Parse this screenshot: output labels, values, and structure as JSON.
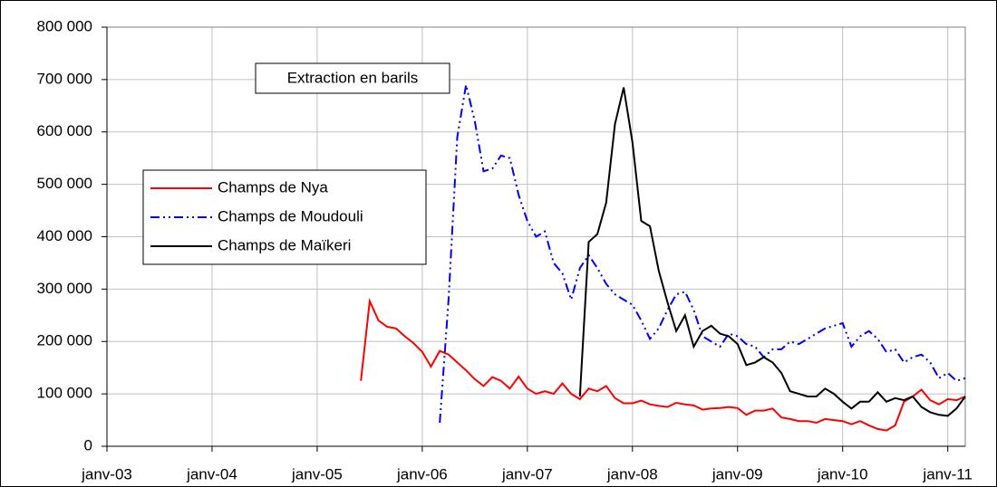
{
  "chart_data": {
    "type": "line",
    "annotation": "Extraction en barils",
    "x": [
      "2005-06",
      "2005-07",
      "2005-08",
      "2005-09",
      "2005-10",
      "2005-11",
      "2005-12",
      "2006-01",
      "2006-02",
      "2006-03",
      "2006-04",
      "2006-05",
      "2006-06",
      "2006-07",
      "2006-08",
      "2006-09",
      "2006-10",
      "2006-11",
      "2006-12",
      "2007-01",
      "2007-02",
      "2007-03",
      "2007-04",
      "2007-05",
      "2007-06",
      "2007-07",
      "2007-08",
      "2007-09",
      "2007-10",
      "2007-11",
      "2007-12",
      "2008-01",
      "2008-02",
      "2008-03",
      "2008-04",
      "2008-05",
      "2008-06",
      "2008-07",
      "2008-08",
      "2008-09",
      "2008-10",
      "2008-11",
      "2008-12",
      "2009-01",
      "2009-02",
      "2009-03",
      "2009-04",
      "2009-05",
      "2009-06",
      "2009-07",
      "2009-08",
      "2009-09",
      "2009-10",
      "2009-11",
      "2009-12",
      "2010-01",
      "2010-02",
      "2010-03",
      "2010-04",
      "2010-05",
      "2010-06",
      "2010-07",
      "2010-08",
      "2010-09",
      "2010-10",
      "2010-11",
      "2010-12",
      "2011-01",
      "2011-02",
      "2011-03"
    ],
    "series": [
      {
        "name": "Champs de Nya",
        "color": "#ff0000",
        "dash": "solid",
        "values": [
          125000,
          277000,
          240000,
          228000,
          225000,
          210000,
          197000,
          180000,
          152000,
          182000,
          175000,
          160000,
          145000,
          128000,
          115000,
          132000,
          125000,
          110000,
          133000,
          110000,
          100000,
          105000,
          100000,
          120000,
          100000,
          90000,
          110000,
          105000,
          115000,
          92000,
          82000,
          82000,
          87000,
          80000,
          77000,
          75000,
          83000,
          80000,
          78000,
          70000,
          72000,
          73000,
          75000,
          73000,
          60000,
          68000,
          68000,
          72000,
          55000,
          52000,
          48000,
          48000,
          45000,
          52000,
          50000,
          48000,
          42000,
          48000,
          40000,
          33000,
          30000,
          40000,
          85000,
          95000,
          108000,
          88000,
          80000,
          90000,
          88000,
          95000
        ]
      },
      {
        "name": "Champs de Moudouli",
        "color": "#0000ff",
        "dash": "dashdotdot",
        "values": [
          null,
          null,
          null,
          null,
          null,
          null,
          null,
          null,
          null,
          45000,
          280000,
          590000,
          690000,
          620000,
          525000,
          530000,
          555000,
          550000,
          480000,
          430000,
          400000,
          410000,
          350000,
          330000,
          280000,
          340000,
          365000,
          340000,
          310000,
          290000,
          280000,
          270000,
          240000,
          205000,
          225000,
          260000,
          290000,
          295000,
          260000,
          210000,
          200000,
          190000,
          215000,
          210000,
          195000,
          190000,
          170000,
          185000,
          185000,
          200000,
          195000,
          205000,
          215000,
          225000,
          230000,
          235000,
          190000,
          210000,
          220000,
          205000,
          180000,
          185000,
          160000,
          170000,
          175000,
          160000,
          130000,
          140000,
          125000,
          130000
        ]
      },
      {
        "name": "Champs de Maïkeri",
        "color": "#000000",
        "dash": "solid",
        "values": [
          null,
          null,
          null,
          null,
          null,
          null,
          null,
          null,
          null,
          null,
          null,
          null,
          null,
          null,
          null,
          null,
          null,
          null,
          null,
          null,
          null,
          null,
          null,
          null,
          null,
          95000,
          390000,
          405000,
          465000,
          615000,
          685000,
          580000,
          430000,
          420000,
          335000,
          275000,
          220000,
          250000,
          190000,
          220000,
          230000,
          215000,
          210000,
          195000,
          155000,
          160000,
          170000,
          160000,
          140000,
          105000,
          100000,
          95000,
          95000,
          110000,
          100000,
          85000,
          72000,
          85000,
          85000,
          103000,
          85000,
          92000,
          88000,
          95000,
          75000,
          65000,
          60000,
          58000,
          72000,
          95000
        ]
      }
    ],
    "xlim": [
      "2003-01",
      "2011-03"
    ],
    "xticks": [
      {
        "value": "2003-01",
        "label": "janv-03"
      },
      {
        "value": "2004-01",
        "label": "janv-04"
      },
      {
        "value": "2005-01",
        "label": "janv-05"
      },
      {
        "value": "2006-01",
        "label": "janv-06"
      },
      {
        "value": "2007-01",
        "label": "janv-07"
      },
      {
        "value": "2008-01",
        "label": "janv-08"
      },
      {
        "value": "2009-01",
        "label": "janv-09"
      },
      {
        "value": "2010-01",
        "label": "janv-10"
      },
      {
        "value": "2011-01",
        "label": "janv-11"
      }
    ],
    "ylim": [
      0,
      800000
    ],
    "yticks": [
      0,
      {
        "value": 100000,
        "label": "100 000"
      },
      {
        "value": 200000,
        "label": "200 000"
      },
      {
        "value": 300000,
        "label": "300 000"
      },
      {
        "value": 400000,
        "label": "400 000"
      },
      {
        "value": 500000,
        "label": "500 000"
      },
      {
        "value": 600000,
        "label": "600 000"
      },
      {
        "value": 700000,
        "label": "700 000"
      },
      {
        "value": 800000,
        "label": "800 000"
      }
    ],
    "grid": true
  }
}
